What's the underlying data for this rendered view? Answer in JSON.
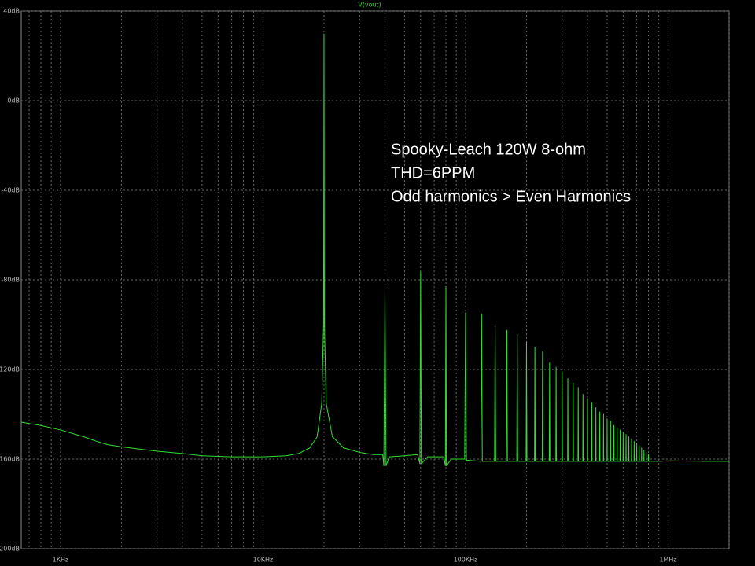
{
  "chart_data": {
    "type": "line",
    "title": "V(vout)",
    "annotation": [
      "Spooky-Leach  120W  8-ohm",
      "THD=6PPM",
      "Odd harmonics > Even Harmonics"
    ],
    "log_x": true,
    "grid": true,
    "background": "#000000",
    "xlim": [
      640,
      2000000
    ],
    "xticks": [
      {
        "value": 1000,
        "label": "1KHz"
      },
      {
        "value": 10000,
        "label": "10KHz"
      },
      {
        "value": 100000,
        "label": "100KHz"
      },
      {
        "value": 1000000,
        "label": "1MHz"
      }
    ],
    "xminorticks": [
      700,
      800,
      900,
      2000,
      3000,
      4000,
      5000,
      6000,
      7000,
      8000,
      9000,
      20000,
      30000,
      40000,
      50000,
      60000,
      70000,
      80000,
      90000,
      200000,
      300000,
      400000,
      500000,
      600000,
      700000,
      800000,
      900000,
      2000000
    ],
    "ylim": [
      -200,
      40
    ],
    "yticks": [
      {
        "value": -200,
        "label": "-200dB"
      },
      {
        "value": -160,
        "label": "-160dB"
      },
      {
        "value": -120,
        "label": "-120dB"
      },
      {
        "value": -80,
        "label": "-80dB"
      },
      {
        "value": -40,
        "label": "-40dB"
      },
      {
        "value": 0,
        "label": "0dB"
      },
      {
        "value": 40,
        "label": "40dB"
      }
    ],
    "series": [
      {
        "name": "V(vout)",
        "color": "#33dd33",
        "x": [
          640,
          800,
          1000,
          1300,
          1500,
          1700,
          2000,
          3000,
          4000,
          5000,
          7000,
          10000,
          13000,
          15000,
          17000,
          18500,
          19500,
          19900,
          20000,
          20100,
          20500,
          22000,
          25000,
          30000,
          35000,
          39000,
          39500,
          40000,
          40500,
          42000,
          50000,
          58000,
          59500,
          60000,
          60500,
          65000,
          78000,
          79500,
          80000,
          80500,
          85000,
          99000,
          100000,
          101000,
          119000,
          120000,
          121000,
          139000,
          140000,
          141000,
          159000,
          160000,
          161000,
          179000,
          180000,
          181000,
          199000,
          200000,
          201000,
          219000,
          220000,
          221000,
          239000,
          240000,
          241000,
          259000,
          260000,
          261000,
          279000,
          280000,
          281000,
          299000,
          300000,
          301000,
          319000,
          320000,
          321000,
          339000,
          340000,
          341000,
          359000,
          360000,
          361000,
          379000,
          380000,
          381000,
          399000,
          400000,
          401000,
          419000,
          420000,
          421000,
          439000,
          440000,
          441000,
          459000,
          460000,
          461000,
          479000,
          480000,
          481000,
          499000,
          500000,
          501000,
          519000,
          520000,
          521000,
          539000,
          540000,
          541000,
          559000,
          560000,
          561000,
          579000,
          580000,
          581000,
          599000,
          600000,
          601000,
          619000,
          620000,
          621000,
          639000,
          640000,
          641000,
          659000,
          660000,
          661000,
          679000,
          680000,
          681000,
          699000,
          700000,
          701000,
          719000,
          720000,
          721000,
          739000,
          740000,
          741000,
          759000,
          760000,
          761000,
          779000,
          780000,
          781000,
          799000,
          800000,
          801000,
          900000,
          1000000,
          1500000,
          2000000
        ],
        "values": [
          -143.5,
          -145,
          -147,
          -150,
          -152,
          -153.5,
          -154.5,
          -156.5,
          -157.5,
          -158.5,
          -159,
          -159,
          -158.5,
          -157.5,
          -155,
          -150,
          -135,
          -100,
          29.8,
          -100,
          -135,
          -150,
          -155,
          -157,
          -158,
          -158,
          -163,
          -84.2,
          -163,
          -159,
          -158.5,
          -158,
          -162,
          -76.5,
          -162,
          -159,
          -159,
          -163,
          -83,
          -163,
          -160,
          -160,
          -94.7,
          -160.5,
          -161,
          -95.4,
          -161,
          -161,
          -99.6,
          -161,
          -161,
          -102.5,
          -161,
          -161,
          -104.2,
          -161,
          -161,
          -107.7,
          -161,
          -161,
          -110,
          -161,
          -161,
          -112,
          -161,
          -161,
          -117,
          -161,
          -161,
          -119,
          -161,
          -161,
          -121,
          -161,
          -161,
          -124,
          -161,
          -161,
          -126,
          -161,
          -161,
          -128,
          -161,
          -161,
          -131,
          -161,
          -161,
          -133,
          -161,
          -161,
          -135,
          -161,
          -161,
          -137,
          -161,
          -161,
          -139,
          -161,
          -161,
          -140,
          -161,
          -161,
          -142,
          -161,
          -161,
          -143,
          -161,
          -161,
          -145,
          -161,
          -161,
          -146,
          -161,
          -161,
          -147,
          -161,
          -161,
          -148,
          -161,
          -161,
          -149,
          -161,
          -161,
          -150,
          -161,
          -161,
          -151,
          -161,
          -161,
          -152,
          -161,
          -161,
          -153,
          -161,
          -161,
          -154,
          -161,
          -161,
          -155,
          -161,
          -161,
          -156,
          -161,
          -161,
          -157,
          -161,
          -161,
          -158,
          -161,
          -161,
          -160.8,
          -161,
          -161
        ]
      }
    ]
  }
}
